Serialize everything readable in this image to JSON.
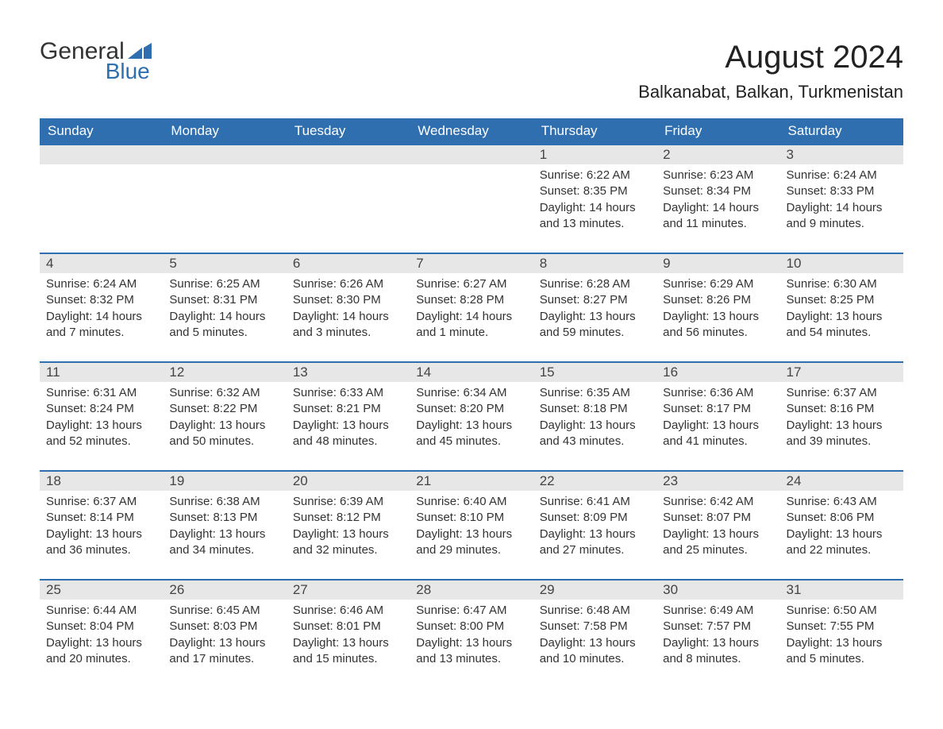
{
  "logo": {
    "text1": "General",
    "text2": "Blue",
    "color_dark": "#333333",
    "color_blue": "#2f6fb0"
  },
  "title": "August 2024",
  "location": "Balkanabat, Balkan, Turkmenistan",
  "weekdays": [
    "Sunday",
    "Monday",
    "Tuesday",
    "Wednesday",
    "Thursday",
    "Friday",
    "Saturday"
  ],
  "colors": {
    "header_bg": "#2f6fb0",
    "header_text": "#ffffff",
    "daynum_bg": "#e7e7e7",
    "border": "#2f6fb0",
    "body_text": "#333333",
    "background": "#ffffff"
  },
  "typography": {
    "title_fontsize": 40,
    "location_fontsize": 22,
    "weekday_fontsize": 17,
    "daynum_fontsize": 17,
    "detail_fontsize": 15,
    "font_family": "Arial"
  },
  "layout": {
    "columns": 7,
    "rows": 5,
    "cell_border_top_width": 2
  },
  "weeks": [
    [
      {
        "day": null
      },
      {
        "day": null
      },
      {
        "day": null
      },
      {
        "day": null
      },
      {
        "day": "1",
        "sunrise": "Sunrise: 6:22 AM",
        "sunset": "Sunset: 8:35 PM",
        "daylight": "Daylight: 14 hours and 13 minutes."
      },
      {
        "day": "2",
        "sunrise": "Sunrise: 6:23 AM",
        "sunset": "Sunset: 8:34 PM",
        "daylight": "Daylight: 14 hours and 11 minutes."
      },
      {
        "day": "3",
        "sunrise": "Sunrise: 6:24 AM",
        "sunset": "Sunset: 8:33 PM",
        "daylight": "Daylight: 14 hours and 9 minutes."
      }
    ],
    [
      {
        "day": "4",
        "sunrise": "Sunrise: 6:24 AM",
        "sunset": "Sunset: 8:32 PM",
        "daylight": "Daylight: 14 hours and 7 minutes."
      },
      {
        "day": "5",
        "sunrise": "Sunrise: 6:25 AM",
        "sunset": "Sunset: 8:31 PM",
        "daylight": "Daylight: 14 hours and 5 minutes."
      },
      {
        "day": "6",
        "sunrise": "Sunrise: 6:26 AM",
        "sunset": "Sunset: 8:30 PM",
        "daylight": "Daylight: 14 hours and 3 minutes."
      },
      {
        "day": "7",
        "sunrise": "Sunrise: 6:27 AM",
        "sunset": "Sunset: 8:28 PM",
        "daylight": "Daylight: 14 hours and 1 minute."
      },
      {
        "day": "8",
        "sunrise": "Sunrise: 6:28 AM",
        "sunset": "Sunset: 8:27 PM",
        "daylight": "Daylight: 13 hours and 59 minutes."
      },
      {
        "day": "9",
        "sunrise": "Sunrise: 6:29 AM",
        "sunset": "Sunset: 8:26 PM",
        "daylight": "Daylight: 13 hours and 56 minutes."
      },
      {
        "day": "10",
        "sunrise": "Sunrise: 6:30 AM",
        "sunset": "Sunset: 8:25 PM",
        "daylight": "Daylight: 13 hours and 54 minutes."
      }
    ],
    [
      {
        "day": "11",
        "sunrise": "Sunrise: 6:31 AM",
        "sunset": "Sunset: 8:24 PM",
        "daylight": "Daylight: 13 hours and 52 minutes."
      },
      {
        "day": "12",
        "sunrise": "Sunrise: 6:32 AM",
        "sunset": "Sunset: 8:22 PM",
        "daylight": "Daylight: 13 hours and 50 minutes."
      },
      {
        "day": "13",
        "sunrise": "Sunrise: 6:33 AM",
        "sunset": "Sunset: 8:21 PM",
        "daylight": "Daylight: 13 hours and 48 minutes."
      },
      {
        "day": "14",
        "sunrise": "Sunrise: 6:34 AM",
        "sunset": "Sunset: 8:20 PM",
        "daylight": "Daylight: 13 hours and 45 minutes."
      },
      {
        "day": "15",
        "sunrise": "Sunrise: 6:35 AM",
        "sunset": "Sunset: 8:18 PM",
        "daylight": "Daylight: 13 hours and 43 minutes."
      },
      {
        "day": "16",
        "sunrise": "Sunrise: 6:36 AM",
        "sunset": "Sunset: 8:17 PM",
        "daylight": "Daylight: 13 hours and 41 minutes."
      },
      {
        "day": "17",
        "sunrise": "Sunrise: 6:37 AM",
        "sunset": "Sunset: 8:16 PM",
        "daylight": "Daylight: 13 hours and 39 minutes."
      }
    ],
    [
      {
        "day": "18",
        "sunrise": "Sunrise: 6:37 AM",
        "sunset": "Sunset: 8:14 PM",
        "daylight": "Daylight: 13 hours and 36 minutes."
      },
      {
        "day": "19",
        "sunrise": "Sunrise: 6:38 AM",
        "sunset": "Sunset: 8:13 PM",
        "daylight": "Daylight: 13 hours and 34 minutes."
      },
      {
        "day": "20",
        "sunrise": "Sunrise: 6:39 AM",
        "sunset": "Sunset: 8:12 PM",
        "daylight": "Daylight: 13 hours and 32 minutes."
      },
      {
        "day": "21",
        "sunrise": "Sunrise: 6:40 AM",
        "sunset": "Sunset: 8:10 PM",
        "daylight": "Daylight: 13 hours and 29 minutes."
      },
      {
        "day": "22",
        "sunrise": "Sunrise: 6:41 AM",
        "sunset": "Sunset: 8:09 PM",
        "daylight": "Daylight: 13 hours and 27 minutes."
      },
      {
        "day": "23",
        "sunrise": "Sunrise: 6:42 AM",
        "sunset": "Sunset: 8:07 PM",
        "daylight": "Daylight: 13 hours and 25 minutes."
      },
      {
        "day": "24",
        "sunrise": "Sunrise: 6:43 AM",
        "sunset": "Sunset: 8:06 PM",
        "daylight": "Daylight: 13 hours and 22 minutes."
      }
    ],
    [
      {
        "day": "25",
        "sunrise": "Sunrise: 6:44 AM",
        "sunset": "Sunset: 8:04 PM",
        "daylight": "Daylight: 13 hours and 20 minutes."
      },
      {
        "day": "26",
        "sunrise": "Sunrise: 6:45 AM",
        "sunset": "Sunset: 8:03 PM",
        "daylight": "Daylight: 13 hours and 17 minutes."
      },
      {
        "day": "27",
        "sunrise": "Sunrise: 6:46 AM",
        "sunset": "Sunset: 8:01 PM",
        "daylight": "Daylight: 13 hours and 15 minutes."
      },
      {
        "day": "28",
        "sunrise": "Sunrise: 6:47 AM",
        "sunset": "Sunset: 8:00 PM",
        "daylight": "Daylight: 13 hours and 13 minutes."
      },
      {
        "day": "29",
        "sunrise": "Sunrise: 6:48 AM",
        "sunset": "Sunset: 7:58 PM",
        "daylight": "Daylight: 13 hours and 10 minutes."
      },
      {
        "day": "30",
        "sunrise": "Sunrise: 6:49 AM",
        "sunset": "Sunset: 7:57 PM",
        "daylight": "Daylight: 13 hours and 8 minutes."
      },
      {
        "day": "31",
        "sunrise": "Sunrise: 6:50 AM",
        "sunset": "Sunset: 7:55 PM",
        "daylight": "Daylight: 13 hours and 5 minutes."
      }
    ]
  ]
}
